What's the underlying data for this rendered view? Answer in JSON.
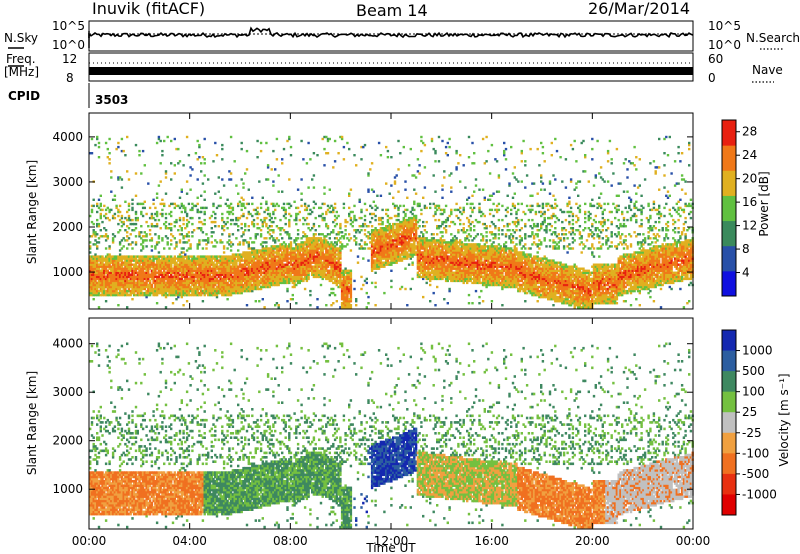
{
  "header": {
    "station": "Inuvik (fitACF)",
    "beam": "Beam 14",
    "date": "26/Mar/2014"
  },
  "top_panels": {
    "nsky_label": "N.Sky",
    "nsearch_label": "N.Search",
    "count_ticks": [
      "10^5",
      "10^0"
    ],
    "freq_label_line1": "Freq.",
    "freq_label_line2": "[MHz]",
    "freq_ticks": [
      "12",
      "8"
    ],
    "nave_label": "Nave",
    "nave_ticks": [
      "60",
      "0"
    ],
    "cpid_label": "CPID",
    "cpid_value": "3503"
  },
  "chart_data": [
    {
      "type": "heatmap",
      "name": "power",
      "ylabel": "Slant Range [km]",
      "xlabel": "Time UT",
      "x_ticks": [
        "00:00",
        "04:00",
        "08:00",
        "12:00",
        "16:00",
        "20:00",
        "00:00"
      ],
      "y_ticks": [
        1000,
        2000,
        3000,
        4000
      ],
      "ylim": [
        180,
        4530
      ],
      "xlim_hours": [
        0,
        24
      ],
      "colorbar": {
        "label": "Power [dB]",
        "ticks": [
          4,
          8,
          12,
          16,
          20,
          24,
          28
        ],
        "range": [
          0,
          30
        ],
        "colors": [
          "#1010e0",
          "#2850a8",
          "#3a8a5c",
          "#60c040",
          "#e0b020",
          "#f07818",
          "#e82010"
        ]
      }
    },
    {
      "type": "heatmap",
      "name": "velocity",
      "ylabel": "Slant Range [km]",
      "xlabel": "Time UT",
      "x_ticks": [
        "00:00",
        "04:00",
        "08:00",
        "12:00",
        "16:00",
        "20:00",
        "00:00"
      ],
      "y_ticks": [
        1000,
        2000,
        3000,
        4000
      ],
      "ylim": [
        180,
        4530
      ],
      "xlim_hours": [
        0,
        24
      ],
      "colorbar": {
        "label": "Velocity [m s⁻¹]",
        "ticks": [
          "1000",
          "500",
          "100",
          "25",
          "-25",
          "-100",
          "-500",
          "-1000"
        ],
        "colors": [
          "#1428b0",
          "#2c5ea0",
          "#3e8860",
          "#74c040",
          "#c0c0c0",
          "#f0a040",
          "#f07020",
          "#e83010",
          "#e00000"
        ]
      }
    }
  ]
}
